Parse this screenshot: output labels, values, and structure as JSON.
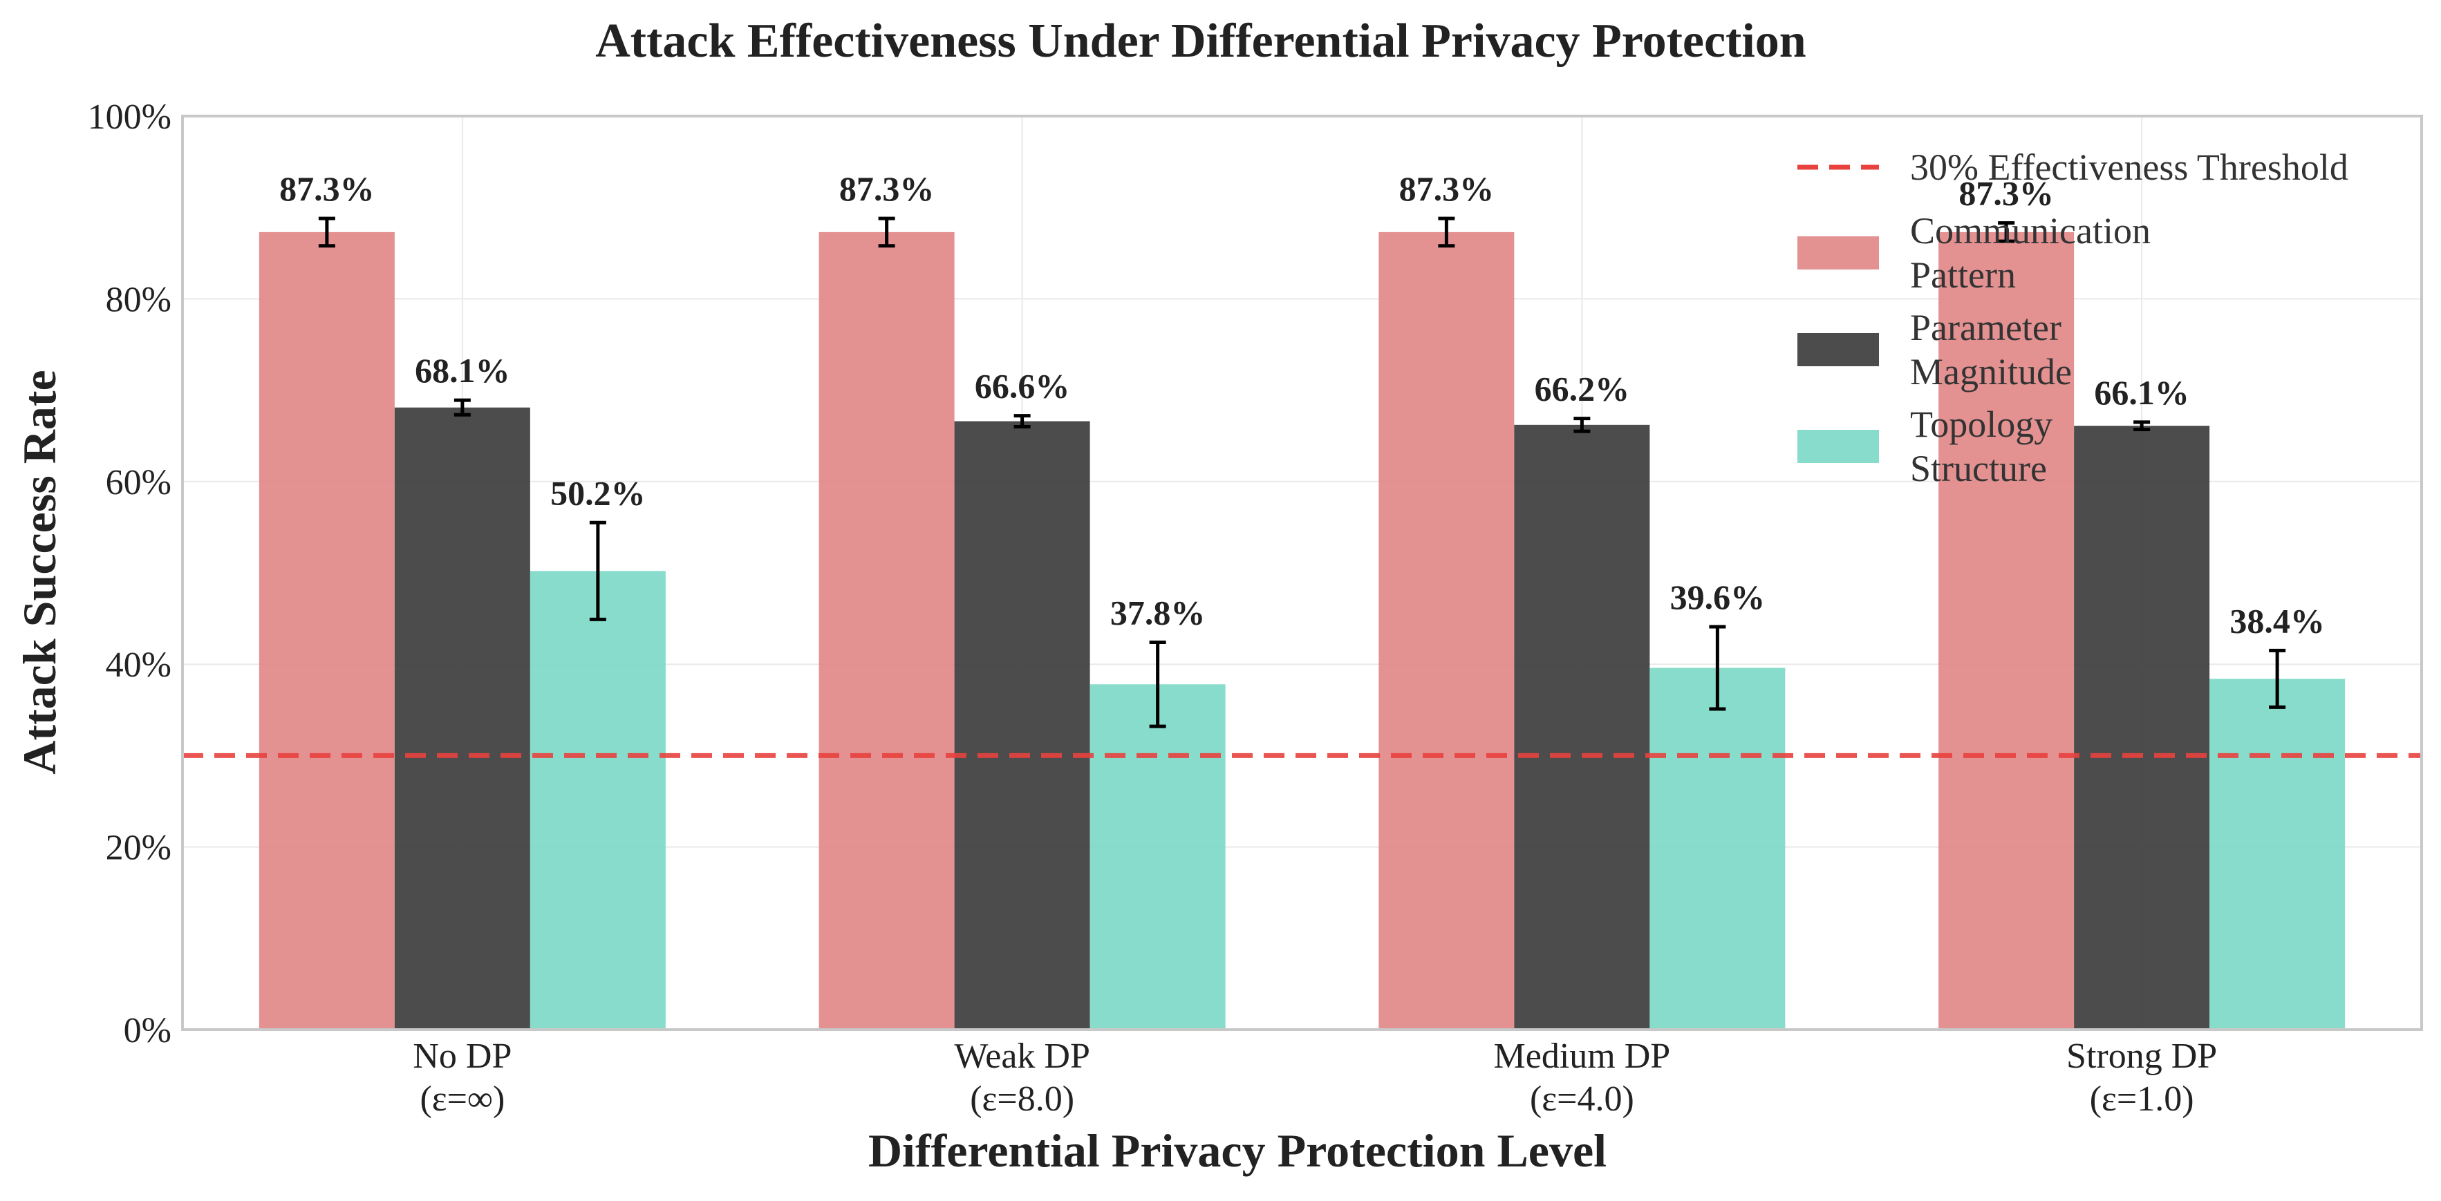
{
  "chart_data": {
    "type": "bar",
    "title": "Attack Effectiveness Under Differential Privacy Protection",
    "xlabel": "Differential Privacy Protection Level",
    "ylabel": "Attack Success Rate",
    "categories": [
      [
        "No DP",
        "(ε=∞)"
      ],
      [
        "Weak DP",
        "(ε=8.0)"
      ],
      [
        "Medium DP",
        "(ε=4.0)"
      ],
      [
        "Strong DP",
        "(ε=1.0)"
      ]
    ],
    "series": [
      {
        "name": "Communication Pattern",
        "legend_lines": [
          "Communication",
          "Pattern"
        ],
        "color": "#e08283",
        "values": [
          87.3,
          87.3,
          87.3,
          87.3
        ],
        "errors": [
          1.5,
          1.5,
          1.5,
          1.0
        ],
        "labels": [
          "87.3%",
          "87.3%",
          "87.3%",
          "87.3%"
        ]
      },
      {
        "name": "Parameter Magnitude",
        "legend_lines": [
          "Parameter",
          "Magnitude"
        ],
        "color": "#333333",
        "values": [
          68.1,
          66.6,
          66.2,
          66.1
        ],
        "errors": [
          0.8,
          0.6,
          0.7,
          0.4
        ],
        "labels": [
          "68.1%",
          "66.6%",
          "66.2%",
          "66.1%"
        ]
      },
      {
        "name": "Topology Structure",
        "legend_lines": [
          "Topology",
          "Structure"
        ],
        "color": "#76d7c4",
        "values": [
          50.2,
          37.8,
          39.6,
          38.4
        ],
        "errors": [
          5.3,
          4.6,
          4.5,
          3.1
        ],
        "labels": [
          "50.2%",
          "37.8%",
          "39.6%",
          "38.4%"
        ]
      }
    ],
    "ylim": [
      0,
      100
    ],
    "yticks": [
      0,
      20,
      40,
      60,
      80,
      100
    ],
    "ytick_labels": [
      "0%",
      "20%",
      "40%",
      "60%",
      "80%",
      "100%"
    ],
    "threshold": {
      "value": 30,
      "label": "30% Effectiveness Threshold",
      "color": "#e8413e"
    },
    "grid": true,
    "legend_position": "top-right"
  }
}
